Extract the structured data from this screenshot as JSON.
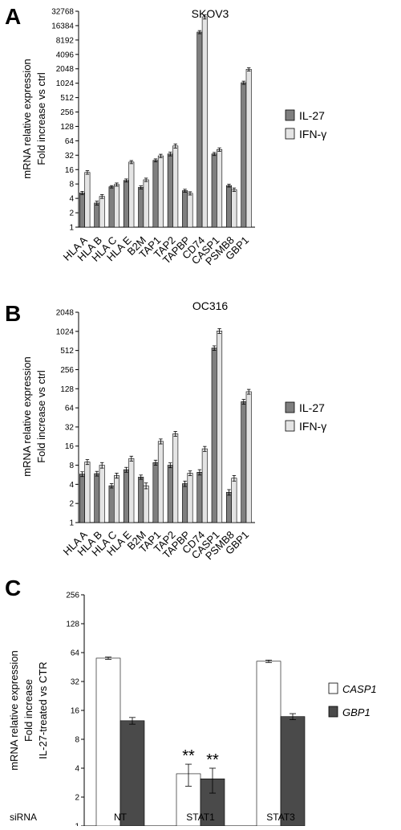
{
  "colors": {
    "dark_bar": "#7f7f7f",
    "light_bar": "#e4e4e4",
    "white_bar": "#ffffff",
    "axis": "#000000"
  },
  "chart_data": [
    {
      "panel_letter": "A",
      "type": "bar",
      "title": "SKOV3",
      "ylabel_lines": [
        "mRNA relative expression",
        "Fold increase vs ctrl"
      ],
      "y_scale": "log2",
      "yticks": [
        1,
        2,
        4,
        8,
        16,
        32,
        64,
        128,
        256,
        512,
        1024,
        2048,
        4096,
        8192,
        16384,
        32768
      ],
      "ylim": [
        1,
        32768
      ],
      "categories": [
        "HLA A",
        "HLA B",
        "HLA C",
        "HLA E",
        "B2M",
        "TAP1",
        "TAP2",
        "TAPBP",
        "CD74",
        "CASP1",
        "PSMB8",
        "GBP1"
      ],
      "series": [
        {
          "name": "IL-27",
          "color": "#7f7f7f",
          "values": [
            5.2,
            3.2,
            7,
            9.5,
            6.8,
            25,
            34,
            5.8,
            12000,
            34,
            7.4,
            1050
          ],
          "errors": [
            0.4,
            0.3,
            0.4,
            0.7,
            0.5,
            1.8,
            3,
            0.4,
            900,
            2.5,
            0.5,
            80
          ]
        },
        {
          "name": "IFN-γ",
          "color": "#e4e4e4",
          "values": [
            14,
            4.4,
            7.8,
            23,
            9.8,
            31,
            50,
            5.1,
            25000,
            42,
            6.1,
            2000
          ],
          "errors": [
            1.2,
            0.4,
            0.6,
            1.7,
            0.8,
            2.5,
            5,
            0.4,
            2500,
            3.5,
            0.5,
            160
          ]
        }
      ]
    },
    {
      "panel_letter": "B",
      "type": "bar",
      "title": "OC316",
      "ylabel_lines": [
        "mRNA relative expression",
        "Fold increase vs ctrl"
      ],
      "y_scale": "log2",
      "yticks": [
        1,
        2,
        4,
        8,
        16,
        32,
        64,
        128,
        256,
        512,
        1024,
        2048
      ],
      "ylim": [
        1,
        2048
      ],
      "categories": [
        "HLA A",
        "HLA B",
        "HLA C",
        "HLA E",
        "B2M",
        "TAP1",
        "TAP2",
        "TAPBP",
        "CD74",
        "CASP1",
        "PSMB8",
        "GBP1"
      ],
      "series": [
        {
          "name": "IL-27",
          "color": "#7f7f7f",
          "values": [
            5.8,
            5.9,
            3.8,
            6.8,
            5.2,
            8.8,
            8,
            4.1,
            6.2,
            560,
            3,
            80
          ],
          "errors": [
            0.5,
            0.5,
            0.3,
            0.6,
            0.4,
            0.8,
            0.7,
            0.4,
            0.6,
            45,
            0.3,
            7
          ]
        },
        {
          "name": "IFN-γ",
          "color": "#e4e4e4",
          "values": [
            9,
            8,
            5.5,
            10.2,
            3.8,
            19,
            25,
            6,
            14.5,
            1040,
            5,
            115
          ],
          "errors": [
            0.8,
            0.8,
            0.5,
            0.9,
            0.4,
            1.7,
            2.2,
            0.5,
            1.3,
            90,
            0.5,
            10
          ]
        }
      ]
    },
    {
      "panel_letter": "C",
      "type": "bar",
      "title": "",
      "ylabel_lines": [
        "mRNA relative expression",
        "Fold increase",
        "IL-27-treated vs CTR"
      ],
      "y_scale": "log2",
      "yticks": [
        1,
        2,
        4,
        8,
        16,
        32,
        64,
        128,
        256
      ],
      "ylim": [
        1,
        256
      ],
      "x_prefix": "siRNA",
      "categories": [
        "NT",
        "STAT1",
        "STAT3"
      ],
      "significance": [
        {
          "category": "STAT1",
          "series": "CASP1",
          "label": "**"
        },
        {
          "category": "STAT1",
          "series": "GBP1",
          "label": "**"
        }
      ],
      "series": [
        {
          "name": "CASP1",
          "color": "#ffffff",
          "values": [
            56,
            3.5,
            52
          ],
          "errors": [
            1.5,
            0.9,
            1.5
          ]
        },
        {
          "name": "GBP1",
          "color": "#4a4a4a",
          "values": [
            12.5,
            3.1,
            13.8
          ],
          "errors": [
            1,
            0.9,
            1
          ]
        }
      ]
    }
  ]
}
